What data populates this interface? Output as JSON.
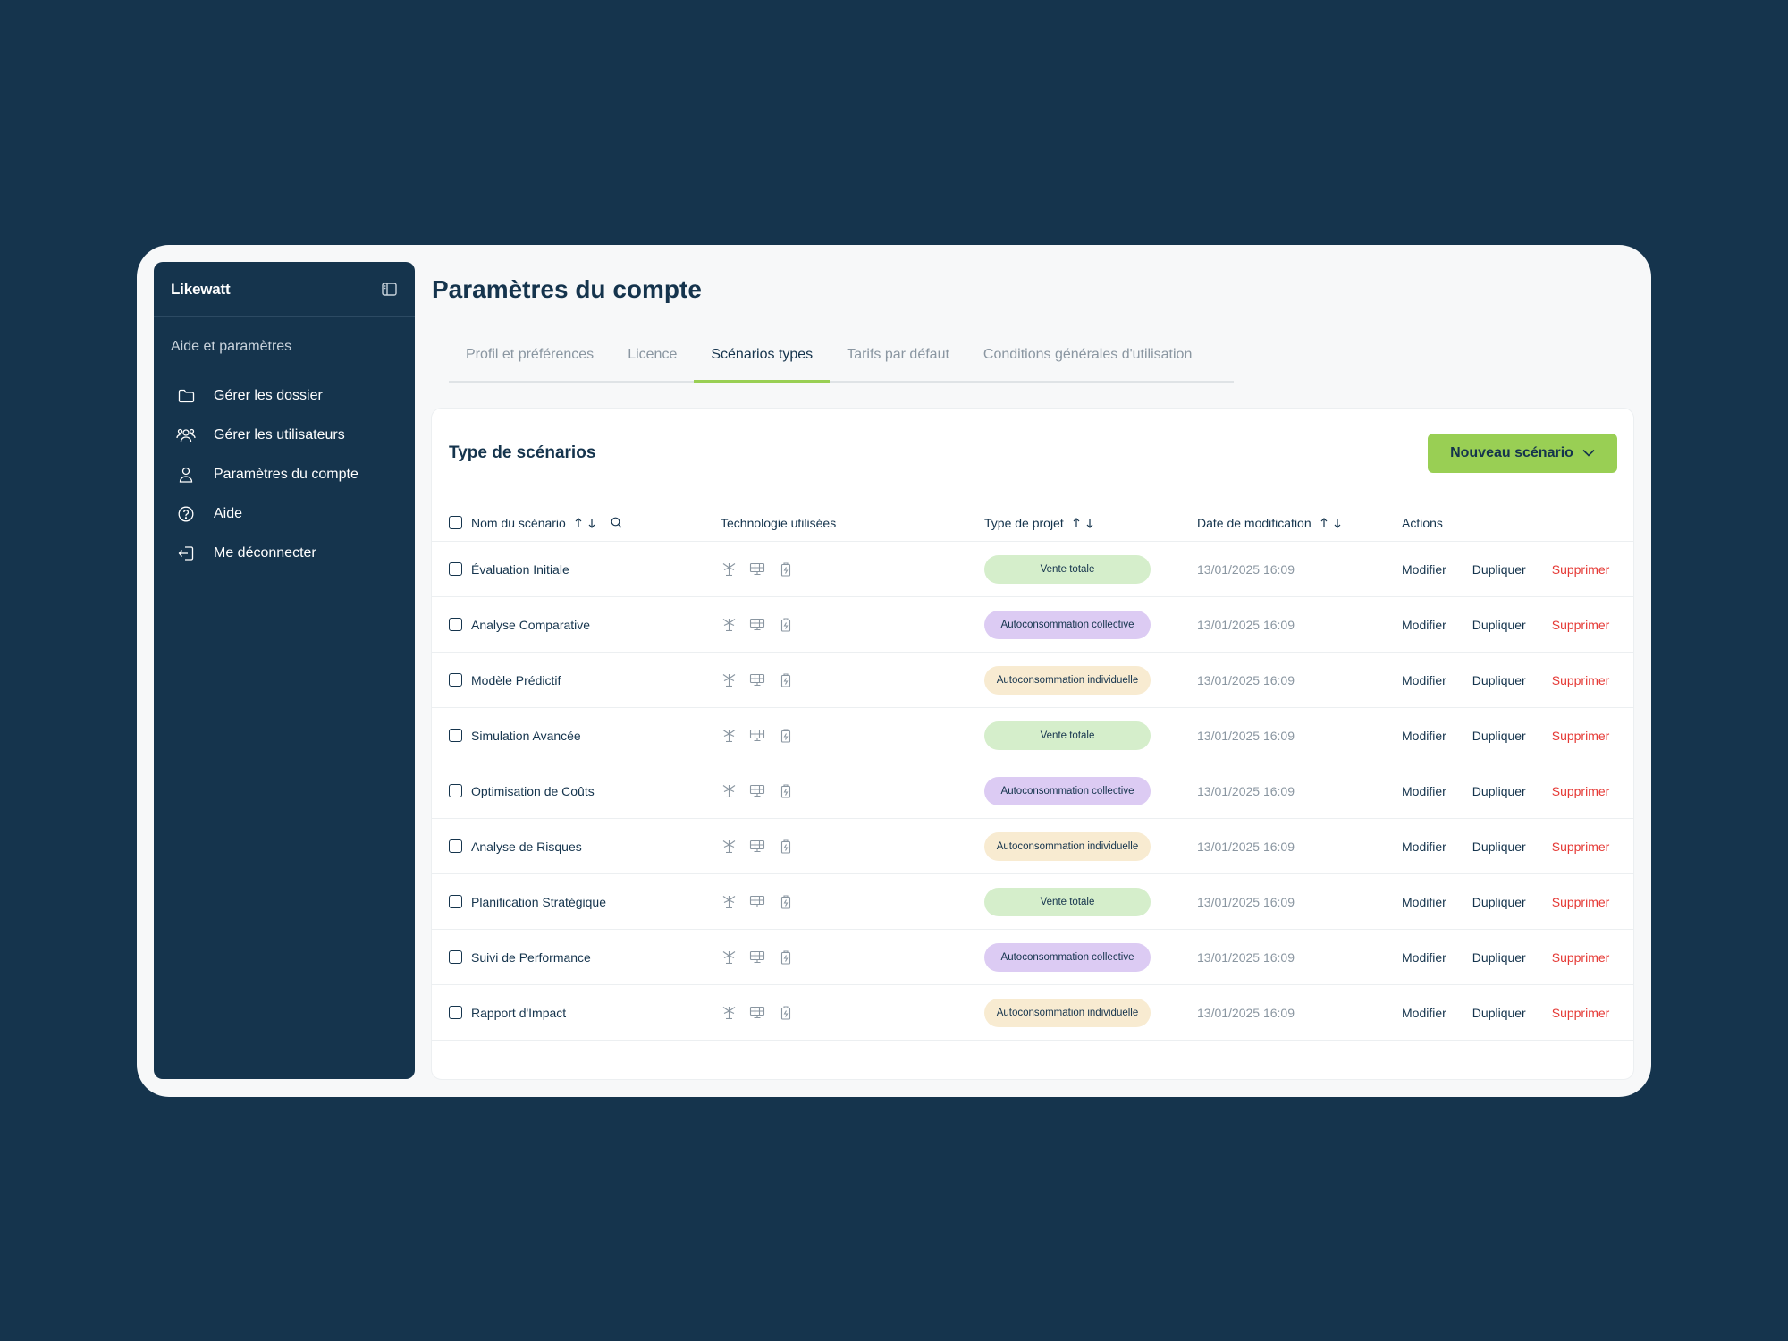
{
  "sidebar": {
    "brand": "Likewatt",
    "section_title": "Aide et paramètres",
    "items": [
      {
        "label": "Gérer les dossier",
        "icon": "folder-icon"
      },
      {
        "label": "Gérer les utilisateurs",
        "icon": "users-icon"
      },
      {
        "label": "Paramètres du compte",
        "icon": "user-icon"
      },
      {
        "label": "Aide",
        "icon": "help-icon"
      },
      {
        "label": "Me déconnecter",
        "icon": "logout-icon"
      }
    ]
  },
  "page": {
    "title": "Paramètres du compte",
    "tabs": [
      {
        "label": "Profil et préférences",
        "active": false
      },
      {
        "label": "Licence",
        "active": false
      },
      {
        "label": "Scénarios types",
        "active": true
      },
      {
        "label": "Tarifs par défaut",
        "active": false
      },
      {
        "label": "Conditions générales d'utilisation",
        "active": false
      }
    ]
  },
  "card": {
    "title": "Type de scénarios",
    "new_button": "Nouveau scénario"
  },
  "table": {
    "headers": {
      "name": "Nom du scénario",
      "tech": "Technologie utilisées",
      "type": "Type de projet",
      "date": "Date de modification",
      "actions": "Actions"
    },
    "action_labels": {
      "edit": "Modifier",
      "duplicate": "Dupliquer",
      "delete": "Supprimer"
    },
    "type_colors": {
      "Vente totale": "#d5eecb",
      "Autoconsommation collective": "#dccbf3",
      "Autoconsommation individuelle": "#f8ebd1"
    },
    "rows": [
      {
        "name": "Évaluation Initiale",
        "type": "Vente totale",
        "date": "13/01/2025 16:09"
      },
      {
        "name": "Analyse Comparative",
        "type": "Autoconsommation collective",
        "date": "13/01/2025 16:09"
      },
      {
        "name": "Modèle Prédictif",
        "type": "Autoconsommation individuelle",
        "date": "13/01/2025 16:09"
      },
      {
        "name": "Simulation Avancée",
        "type": "Vente totale",
        "date": "13/01/2025 16:09"
      },
      {
        "name": "Optimisation de Coûts",
        "type": "Autoconsommation collective",
        "date": "13/01/2025 16:09"
      },
      {
        "name": "Analyse de Risques",
        "type": "Autoconsommation individuelle",
        "date": "13/01/2025 16:09"
      },
      {
        "name": "Planification Stratégique",
        "type": "Vente totale",
        "date": "13/01/2025 16:09"
      },
      {
        "name": "Suivi de Performance",
        "type": "Autoconsommation collective",
        "date": "13/01/2025 16:09"
      },
      {
        "name": "Rapport d'Impact",
        "type": "Autoconsommation individuelle",
        "date": "13/01/2025 16:09"
      }
    ]
  }
}
